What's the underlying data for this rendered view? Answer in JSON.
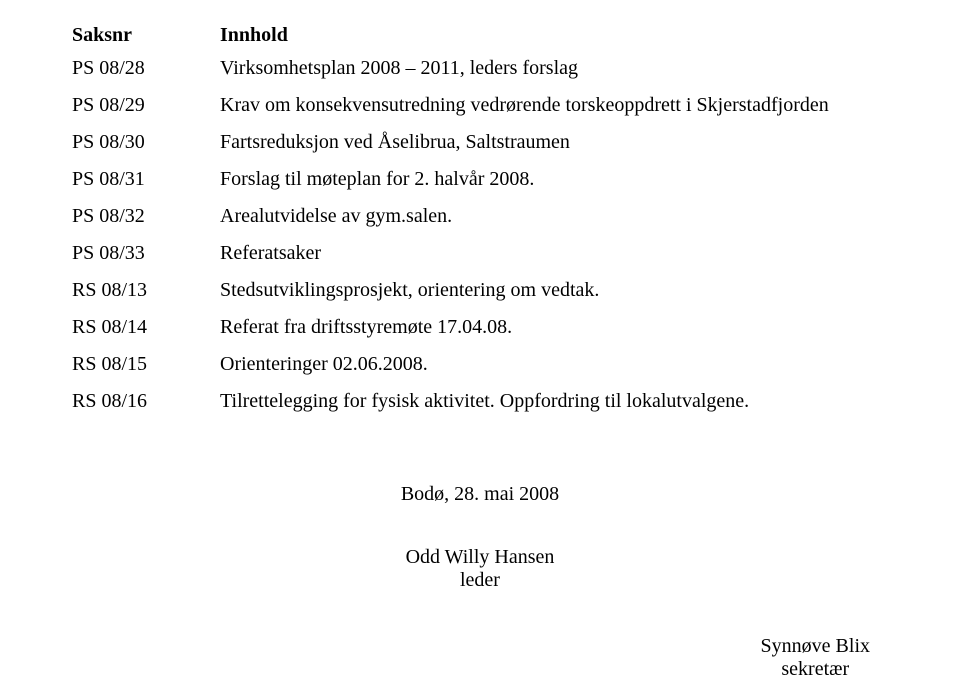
{
  "headers": {
    "col1": "Saksnr",
    "col2": "Innhold"
  },
  "rows": [
    {
      "id": "PS 08/28",
      "text": "Virksomhetsplan 2008 – 2011, leders forslag"
    },
    {
      "id": "PS 08/29",
      "text": "Krav om konsekvensutredning vedrørende torskeoppdrett i Skjerstadfjorden"
    },
    {
      "id": "PS 08/30",
      "text": "Fartsreduksjon ved Åselibrua, Saltstraumen"
    },
    {
      "id": "PS 08/31",
      "text": "Forslag til møteplan for 2. halvår 2008."
    },
    {
      "id": "PS 08/32",
      "text": "Arealutvidelse av gym.salen."
    },
    {
      "id": "PS 08/33",
      "text": "Referatsaker"
    },
    {
      "id": "RS 08/13",
      "text": "Stedsutviklingsprosjekt, orientering om vedtak."
    },
    {
      "id": "RS 08/14",
      "text": "Referat fra driftsstyremøte 17.04.08."
    },
    {
      "id": "RS 08/15",
      "text": "Orienteringer 02.06.2008."
    },
    {
      "id": "RS 08/16",
      "text": "Tilrettelegging for fysisk aktivitet. Oppfordring til lokalutvalgene."
    }
  ],
  "signature": {
    "place_date": "Bodø, 28. mai 2008",
    "leader_name": "Odd Willy Hansen",
    "leader_title": "leder",
    "secretary_name": "Synnøve Blix",
    "secretary_title": "sekretær"
  }
}
